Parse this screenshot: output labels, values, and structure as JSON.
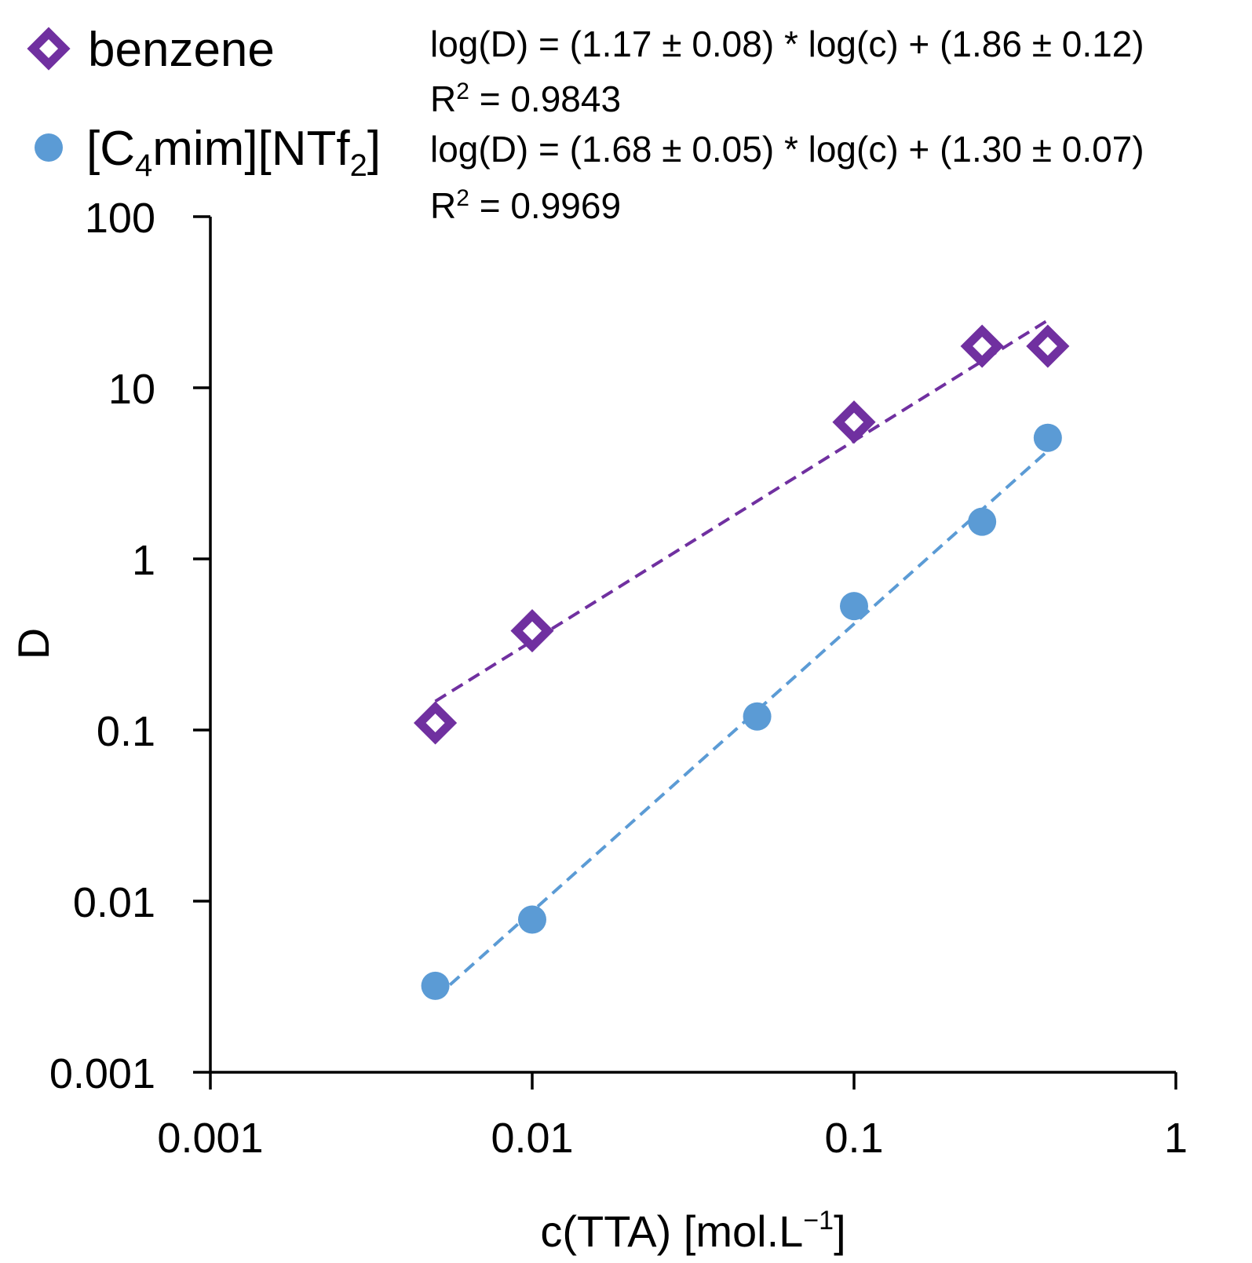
{
  "chart_data": {
    "type": "scatter",
    "x_scale": "log",
    "y_scale": "log",
    "xlabel": "c(TTA) [mol.L",
    "xlabel_sup": "−1",
    "xlabel_end": "]",
    "ylabel": "D",
    "xlim": [
      0.001,
      1
    ],
    "ylim": [
      0.001,
      100
    ],
    "x_ticks": [
      0.001,
      0.01,
      0.1,
      1
    ],
    "x_tick_labels": [
      "0.001",
      "0.01",
      "0.1",
      "1"
    ],
    "y_ticks": [
      0.001,
      0.01,
      0.1,
      1,
      10,
      100
    ],
    "y_tick_labels": [
      "0.001",
      "0.01",
      "0.1",
      "1",
      "10",
      "100"
    ],
    "legend_position": "top-left",
    "series": [
      {
        "name": "benzene",
        "marker": "diamond-open",
        "color": "#7030A0",
        "x": [
          0.005,
          0.01,
          0.1,
          0.25,
          0.4
        ],
        "y": [
          0.11,
          0.38,
          6.3,
          17.5,
          17.5
        ],
        "trendline": {
          "slope": 1.17,
          "intercept": 1.86,
          "x_range": [
            0.005,
            0.4
          ]
        },
        "equation": "log(D) = (1.17 ± 0.08)  * log(c) + (1.86 ± 0.12)",
        "r2_label": "R",
        "r2_sup": "2",
        "r2_value": " = 0.9843"
      },
      {
        "name_parts": [
          "[C",
          "4",
          "mim][NTf",
          "2",
          "]"
        ],
        "marker": "circle",
        "color": "#5B9BD5",
        "x": [
          0.005,
          0.01,
          0.05,
          0.1,
          0.25,
          0.4
        ],
        "y": [
          0.0032,
          0.0078,
          0.12,
          0.53,
          1.65,
          5.1
        ],
        "trendline": {
          "slope": 1.68,
          "intercept": 1.3,
          "x_range": [
            0.005,
            0.4
          ]
        },
        "equation": "log(D) = (1.68 ± 0.05)  * log(c) + (1.30 ± 0.07)",
        "r2_label": "R",
        "r2_sup": "2",
        "r2_value": " = 0.9969"
      }
    ]
  }
}
